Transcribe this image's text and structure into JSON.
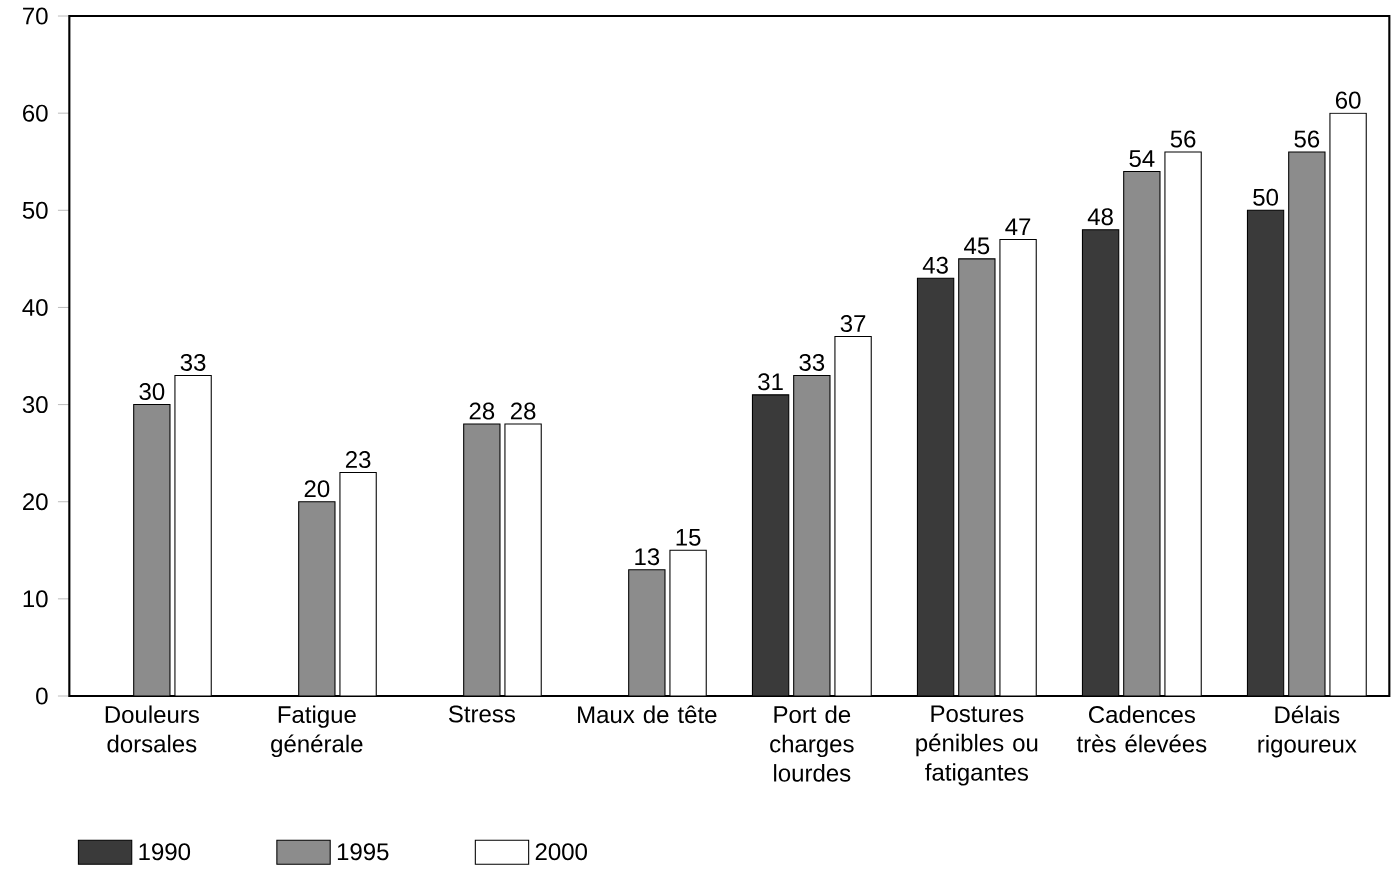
{
  "chart_data": {
    "type": "bar",
    "categories": [
      "Douleurs dorsales",
      "Fatigue générale",
      "Stress",
      "Maux de tête",
      "Port de charges lourdes",
      "Postures pénibles ou fatigantes",
      "Cadences très élevées",
      "Délais rigoureux"
    ],
    "series": [
      {
        "name": "1990",
        "color": "#3a3a3a",
        "values": [
          null,
          null,
          null,
          null,
          31,
          43,
          48,
          50
        ]
      },
      {
        "name": "1995",
        "color": "#8c8c8c",
        "values": [
          30,
          20,
          28,
          13,
          33,
          45,
          54,
          56
        ]
      },
      {
        "name": "2000",
        "color": "#ffffff",
        "values": [
          33,
          23,
          28,
          15,
          37,
          47,
          56,
          60
        ]
      }
    ],
    "ylim": [
      0,
      70
    ],
    "yticks": [
      0,
      10,
      20,
      30,
      40,
      50,
      60,
      70
    ],
    "data_labels": true,
    "legend": "bottom left",
    "grid": false
  }
}
